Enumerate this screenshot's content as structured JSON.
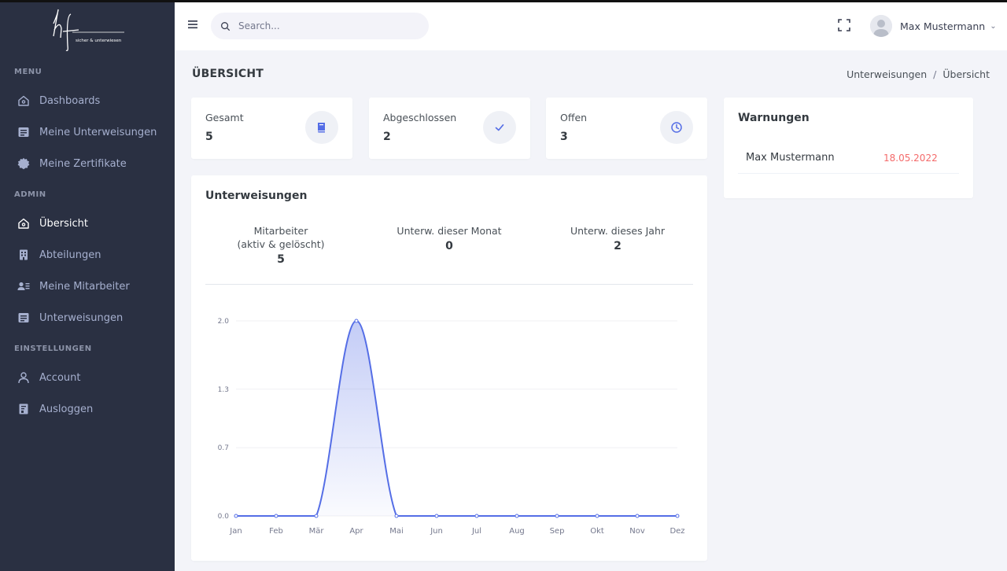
{
  "logo": {
    "text": "hf",
    "tagline": "sicher & unterwiesen"
  },
  "sidebar": {
    "sections": [
      {
        "title": "MENU",
        "items": [
          {
            "label": "Dashboards",
            "icon": "home-icon"
          },
          {
            "label": "Meine Unterweisungen",
            "icon": "document-icon"
          },
          {
            "label": "Meine Zertifikate",
            "icon": "badge-icon"
          }
        ]
      },
      {
        "title": "ADMIN",
        "items": [
          {
            "label": "Übersicht",
            "icon": "home-icon",
            "active": true
          },
          {
            "label": "Abteilungen",
            "icon": "building-icon"
          },
          {
            "label": "Meine Mitarbeiter",
            "icon": "users-icon"
          },
          {
            "label": "Unterweisungen",
            "icon": "document-icon"
          }
        ]
      },
      {
        "title": "EINSTELLUNGEN",
        "items": [
          {
            "label": "Account",
            "icon": "user-icon"
          },
          {
            "label": "Ausloggen",
            "icon": "logout-icon"
          }
        ]
      }
    ]
  },
  "header": {
    "search_placeholder": "Search...",
    "user_name": "Max Mustermann"
  },
  "page": {
    "title": "ÜBERSICHT",
    "breadcrumb": [
      "Unterweisungen",
      "Übersicht"
    ]
  },
  "stats": [
    {
      "label": "Gesamt",
      "value": "5",
      "icon": "book-icon"
    },
    {
      "label": "Abgeschlossen",
      "value": "2",
      "icon": "check-icon"
    },
    {
      "label": "Offen",
      "value": "3",
      "icon": "clock-icon"
    }
  ],
  "warnings": {
    "title": "Warnungen",
    "rows": [
      {
        "name": "Max Mustermann",
        "date": "18.05.2022"
      }
    ]
  },
  "training": {
    "title": "Unterweisungen",
    "kpis": [
      {
        "label_line1": "Mitarbeiter",
        "label_line2": "(aktiv & gelöscht)",
        "value": "5"
      },
      {
        "label_line1": "Unterw. dieser Monat",
        "label_line2": "",
        "value": "0"
      },
      {
        "label_line1": "Unterw. dieses Jahr",
        "label_line2": "",
        "value": "2"
      }
    ]
  },
  "colors": {
    "accent": "#556ee6",
    "danger": "#f46a6a",
    "sidebar": "#2a3042"
  },
  "chart_data": {
    "type": "area",
    "categories": [
      "Jan",
      "Feb",
      "Mär",
      "Apr",
      "Mai",
      "Jun",
      "Jul",
      "Aug",
      "Sep",
      "Okt",
      "Nov",
      "Dez"
    ],
    "values": [
      0,
      0,
      0,
      2,
      0,
      0,
      0,
      0,
      0,
      0,
      0,
      0
    ],
    "y_ticks": [
      "0.0",
      "0.7",
      "1.3",
      "2.0"
    ],
    "ylim": [
      0,
      2
    ],
    "grid": true
  }
}
